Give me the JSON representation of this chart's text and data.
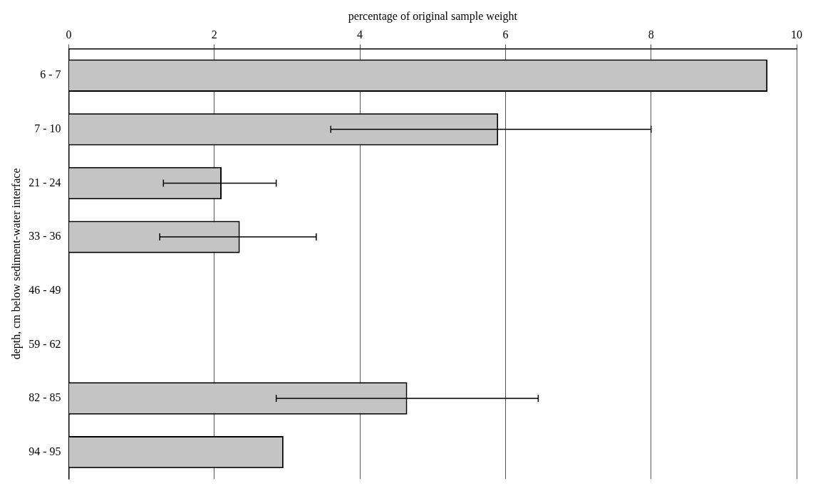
{
  "chart_data": {
    "type": "bar",
    "orientation": "horizontal",
    "xlabel": "percentage of original sample weight",
    "ylabel": "depth, cm below sediment-water interface",
    "categories": [
      "6 - 7",
      "7 - 10",
      "21 - 24",
      "33 - 36",
      "46 - 49",
      "59 - 62",
      "82 - 85",
      "94 - 95"
    ],
    "values": [
      9.6,
      5.9,
      2.1,
      2.35,
      null,
      null,
      4.65,
      2.95
    ],
    "errors": [
      null,
      [
        3.6,
        8.0
      ],
      [
        1.3,
        2.85
      ],
      [
        1.25,
        3.4
      ],
      null,
      null,
      [
        2.85,
        6.45
      ],
      null
    ],
    "color": "#c4c4c4",
    "xlim": [
      0,
      10
    ],
    "xticks": [
      0,
      2,
      4,
      6,
      8,
      10
    ],
    "grid": "x",
    "legend": false
  }
}
